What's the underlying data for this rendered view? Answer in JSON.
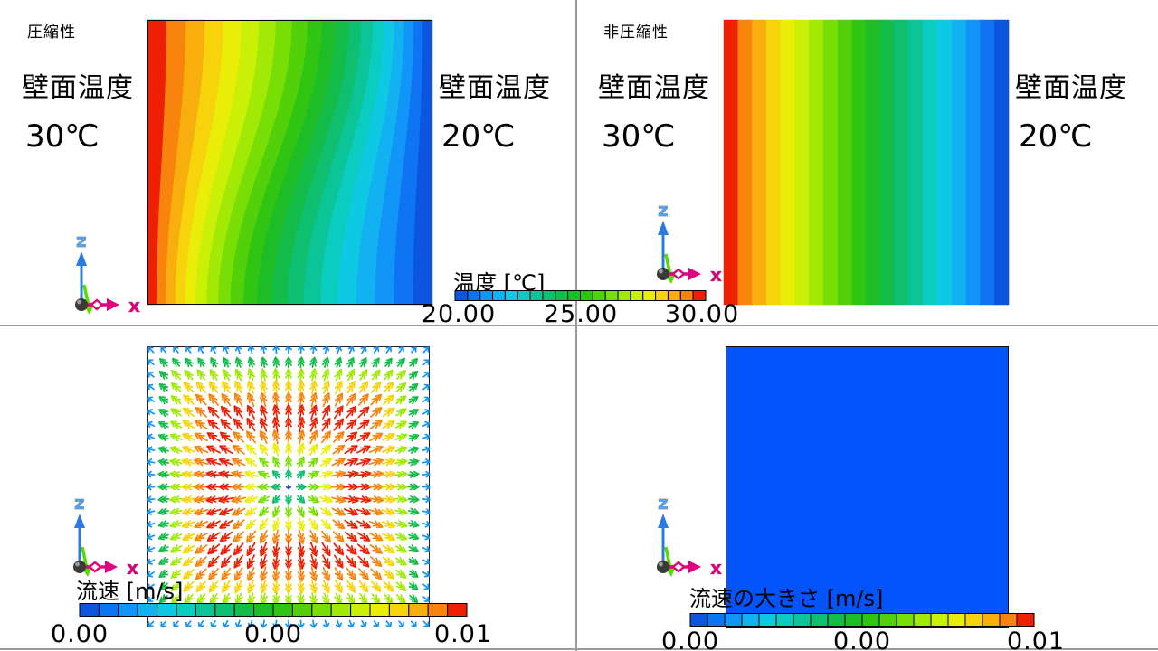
{
  "panels": {
    "top_left": {
      "header": "圧縮性",
      "left_wall_title": "壁面温度",
      "left_wall_value": "30℃",
      "right_wall_title": "壁面温度",
      "right_wall_value": "20℃"
    },
    "top_right": {
      "header": "非圧縮性",
      "left_wall_title": "壁面温度",
      "left_wall_value": "30℃",
      "right_wall_title": "壁面温度",
      "right_wall_value": "20℃"
    },
    "bottom_left": {
      "colorbar_title": "流速 [m/s]",
      "tick_left": "0.00",
      "tick_mid": "0.00",
      "tick_right": "0.01"
    },
    "bottom_right": {
      "colorbar_title": "流速の大きさ [m/s]",
      "tick_left": "0.00",
      "tick_mid": "0.00",
      "tick_right": "0.01"
    }
  },
  "temperature_colorbar": {
    "title": "温度 [℃]",
    "tick_left": "20.00",
    "tick_mid": "25.00",
    "tick_right": "30.00"
  },
  "axis_triad": {
    "x_label": "x",
    "z_label": "z"
  },
  "colors": {
    "background": "#ffffff",
    "divider": "#9b9b9b",
    "text": "#000000",
    "axis_x": "#e0007f",
    "axis_z": "#2b7bde",
    "axis_z_label": "#55a0e8",
    "axis_y": "#55dd00",
    "axis_origin": "#3a3a3a",
    "uniform_velocity_fill": "#0355fb",
    "vector_box_border": "#222222",
    "colorbar_cell_border": "#000000"
  },
  "palette_blue_to_red": [
    "#0b55df",
    "#0e74f2",
    "#1195f8",
    "#12b2f2",
    "#0dc9e4",
    "#0accc0",
    "#0bc599",
    "#0fbf70",
    "#13bc49",
    "#1dbd28",
    "#31c513",
    "#52d10a",
    "#79de06",
    "#a2e905",
    "#c9f006",
    "#e9ed07",
    "#f6d30b",
    "#f8af0d",
    "#f8840d",
    "#ee2004"
  ],
  "chart_data": [
    {
      "type": "heatmap",
      "panel": "top-left",
      "label": "圧縮性 (compressible)",
      "quantity": "温度 [℃]",
      "value_range": [
        20,
        30
      ],
      "left_wall_temp_c": 30,
      "right_wall_temp_c": 20,
      "bands": 20,
      "pattern": "S-curved isotherms bulging right near the top and left near the bottom (natural convection distorts the temperature field)",
      "color_order": "red (30℃) at left wall → blue (20℃) at right wall"
    },
    {
      "type": "heatmap",
      "panel": "top-right",
      "label": "非圧縮性 (incompressible)",
      "quantity": "温度 [℃]",
      "value_range": [
        20,
        30
      ],
      "left_wall_temp_c": 30,
      "right_wall_temp_c": 20,
      "bands": 20,
      "pattern": "straight vertical isotherms with uniform spacing (pure conduction, linear profile)",
      "color_order": "red (30℃) at left wall → blue (20℃) at right wall"
    },
    {
      "type": "vector-field",
      "panel": "bottom-left",
      "quantity": "流速 [m/s]",
      "value_range": [
        0,
        0.01
      ],
      "colorbar_ticks": [
        "0.00",
        "0.00",
        "0.01"
      ],
      "circulation": "clockwise convection cell: up along hot left wall, right along top, down along cold right wall, left along bottom",
      "speed_profile": "maximum (red, ≈0.01 m/s) in a ring at about half radius; slow (blue/cyan) at the walls and at the vortex core",
      "grid": "≈23×23 arrow glyphs"
    },
    {
      "type": "heatmap",
      "panel": "bottom-right",
      "quantity": "流速の大きさ [m/s]",
      "value_range": [
        0,
        0.01
      ],
      "colorbar_ticks": [
        "0.00",
        "0.00",
        "0.01"
      ],
      "uniform_value": 0,
      "pattern": "uniform 0 m/s everywhere (no flow) — solid blue square"
    }
  ]
}
